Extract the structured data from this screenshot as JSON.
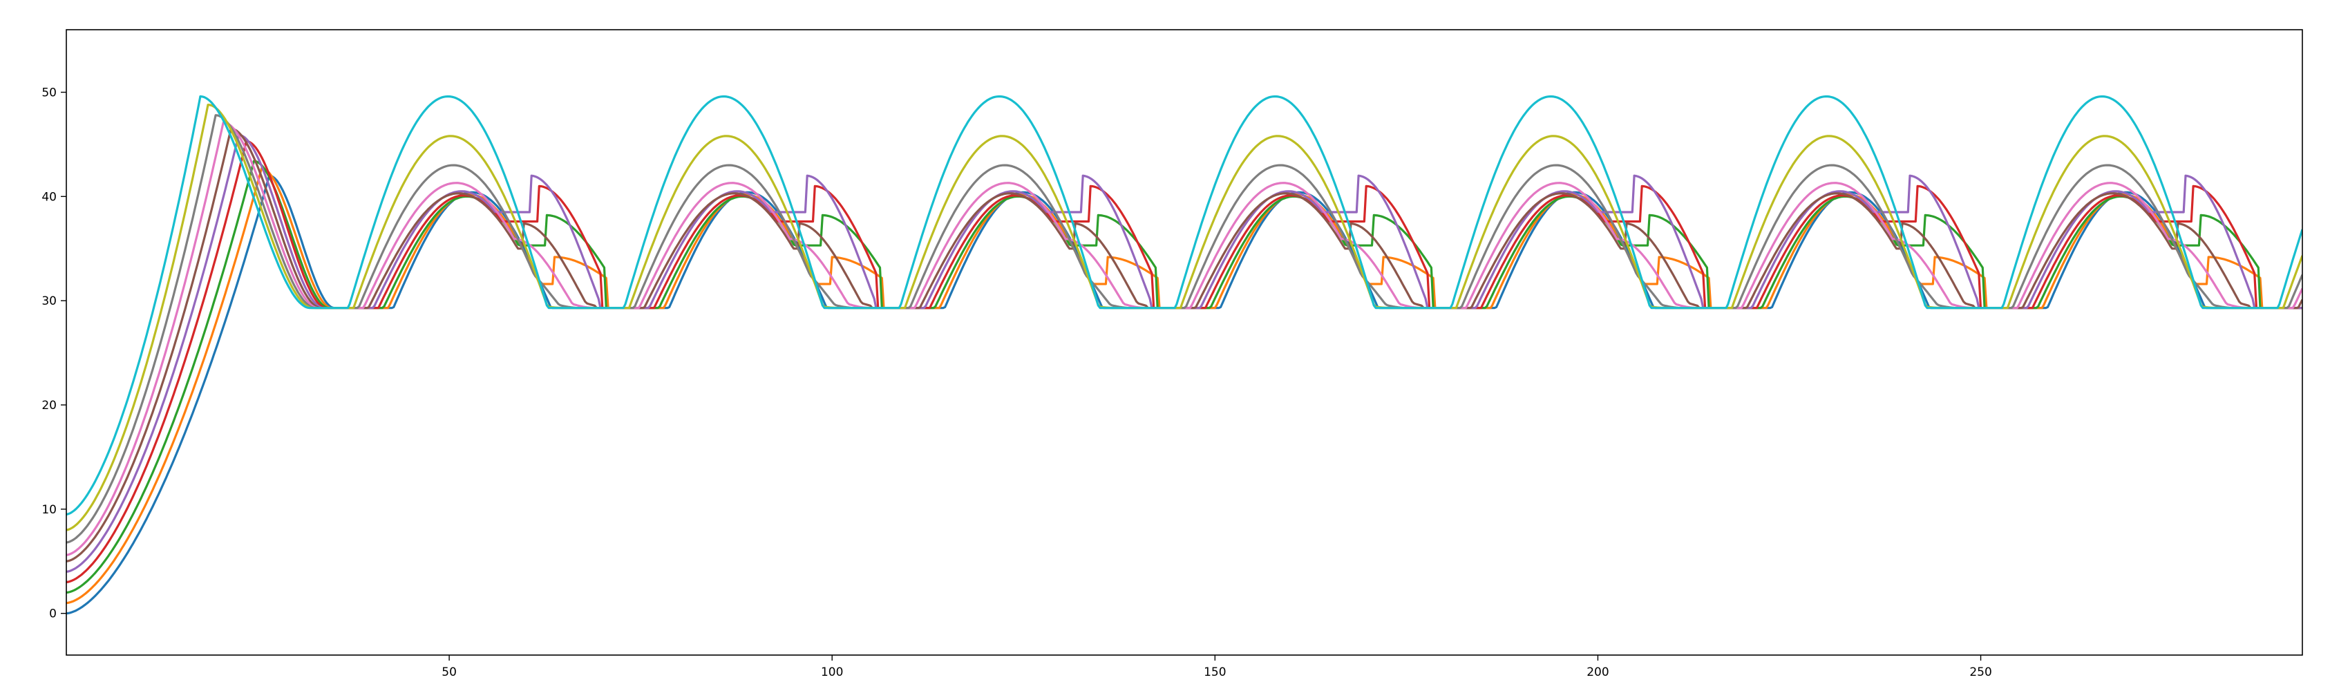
{
  "chart_data": {
    "type": "line",
    "title": "",
    "xlabel": "",
    "ylabel": "",
    "xlim": [
      0,
      292
    ],
    "ylim": [
      -4,
      56
    ],
    "x_ticks": [
      50,
      100,
      150,
      200,
      250
    ],
    "y_ticks": [
      0,
      10,
      20,
      30,
      40,
      50
    ],
    "grid": false,
    "legend": "none",
    "model": {
      "x_start": 0,
      "x_end": 292,
      "period": 36,
      "first_peak_x": 17.5,
      "first_cycle_center_x": 53,
      "floor_y": 29.3,
      "first_peak_y": 49.6
    },
    "series": [
      {
        "color": "#1f77b4",
        "start_y": 0.0,
        "initial_peak_y": 42.0,
        "peak_y": 40.4,
        "trough_y": 26.8,
        "shelf_y": 33.6
      },
      {
        "color": "#ff7f0e",
        "start_y": 1.0,
        "initial_peak_y": 42.7,
        "peak_y": 40.2,
        "trough_y": 31.6,
        "shelf_y": 36.7
      },
      {
        "color": "#2ca02c",
        "start_y": 2.0,
        "initial_peak_y": 43.4,
        "peak_y": 40.0,
        "trough_y": 35.3,
        "shelf_y": 37.6
      },
      {
        "color": "#d62728",
        "start_y": 3.0,
        "initial_peak_y": 45.3,
        "peak_y": 40.1,
        "trough_y": 37.6,
        "shelf_y": 39.0
      },
      {
        "color": "#9467bd",
        "start_y": 4.0,
        "initial_peak_y": 45.9,
        "peak_y": 40.5,
        "trough_y": 38.5,
        "shelf_y": 39.3
      },
      {
        "color": "#8c564b",
        "start_y": 5.0,
        "initial_peak_y": 46.5,
        "peak_y": 40.3,
        "trough_y": 35.0,
        "shelf_y": 36.2
      },
      {
        "color": "#e377c2",
        "start_y": 5.6,
        "initial_peak_y": 47.1,
        "peak_y": 41.3,
        "trough_y": 34.0,
        "shelf_y": 34.8
      },
      {
        "color": "#7f7f7f",
        "start_y": 6.8,
        "initial_peak_y": 47.8,
        "peak_y": 43.0,
        "trough_y": 32.5,
        "shelf_y": 33.5
      },
      {
        "color": "#bcbd22",
        "start_y": 8.0,
        "initial_peak_y": 48.8,
        "peak_y": 45.8,
        "trough_y": 30.5,
        "shelf_y": 31.5
      },
      {
        "color": "#17becf",
        "start_y": 9.5,
        "initial_peak_y": 49.6,
        "peak_y": 49.6,
        "trough_y": 29.3,
        "shelf_y": 29.6
      }
    ]
  }
}
